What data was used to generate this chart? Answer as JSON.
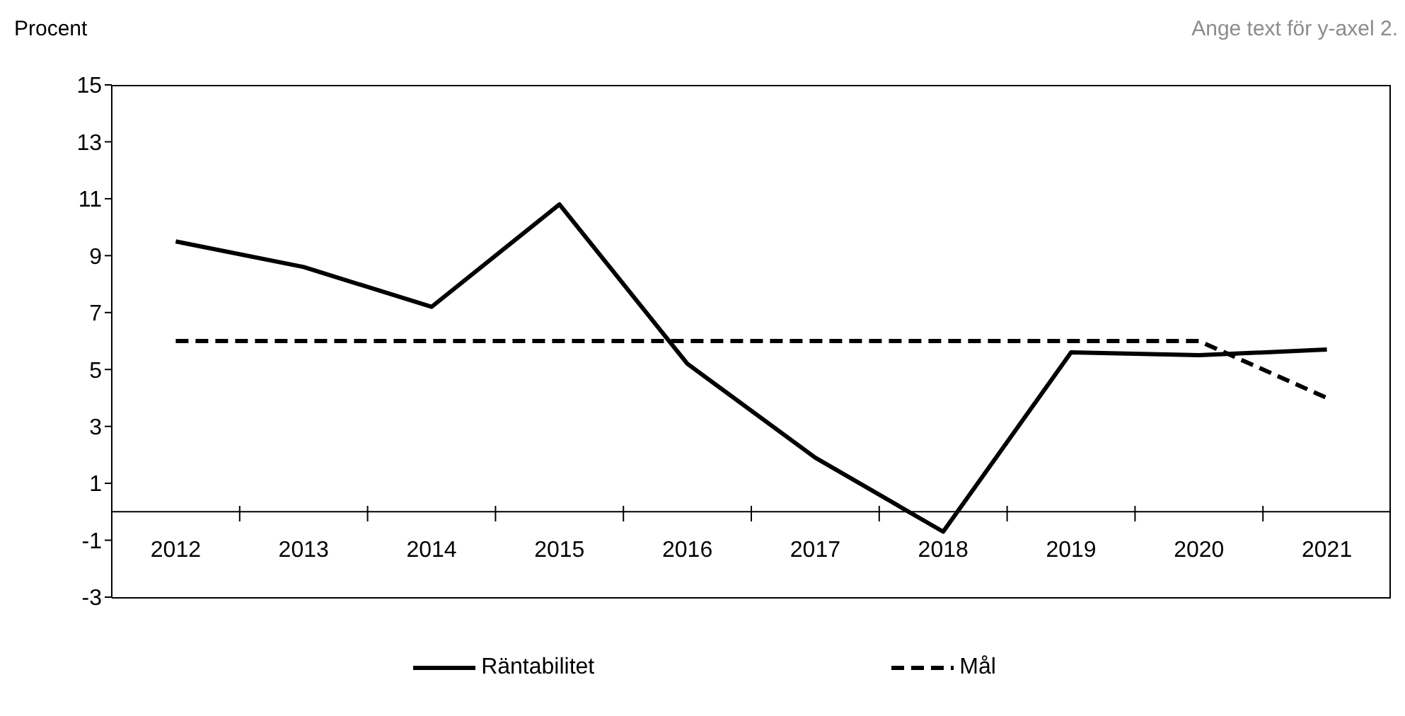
{
  "chart_data": {
    "type": "line",
    "ylabel": "Procent",
    "y2label": "Ange text för y-axel 2.",
    "categories": [
      "2012",
      "2013",
      "2014",
      "2015",
      "2016",
      "2017",
      "2018",
      "2019",
      "2020",
      "2021"
    ],
    "series": [
      {
        "name": "Räntabilitet",
        "color": "#000000",
        "line_style": "solid",
        "values": [
          9.5,
          8.6,
          7.2,
          10.8,
          5.2,
          1.9,
          -0.7,
          5.6,
          5.5,
          5.7
        ]
      },
      {
        "name": "Mål",
        "color": "#000000",
        "line_style": "dashed",
        "values": [
          6,
          6,
          6,
          6,
          6,
          6,
          6,
          6,
          6,
          4.0
        ]
      }
    ],
    "ylim": [
      -3,
      15
    ],
    "yticks": [
      -3,
      -1,
      1,
      3,
      5,
      7,
      9,
      11,
      13,
      15
    ],
    "marker": "none",
    "legend": "bottom"
  }
}
